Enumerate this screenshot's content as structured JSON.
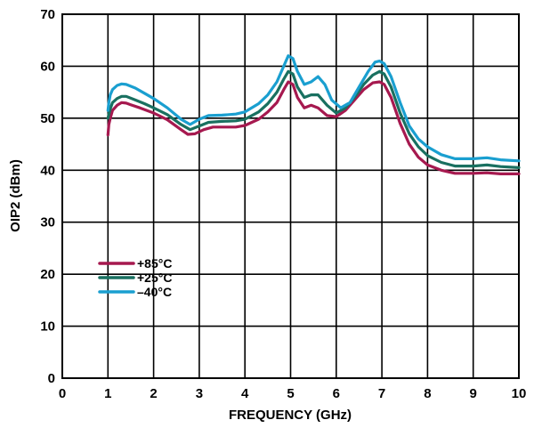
{
  "chart_data": {
    "type": "line",
    "title": "",
    "xlabel": "FREQUENCY (GHz)",
    "ylabel": "OIP2 (dBm)",
    "xlim": [
      0,
      10
    ],
    "ylim": [
      0,
      70
    ],
    "xticks": [
      0,
      1,
      2,
      3,
      4,
      5,
      6,
      7,
      8,
      9,
      10
    ],
    "yticks": [
      0,
      10,
      20,
      30,
      40,
      50,
      60,
      70
    ],
    "grid": true,
    "legend_position": "lower-left",
    "series": [
      {
        "name": "+85°C",
        "color": "#a6194f",
        "x": [
          1.0,
          1.02,
          1.05,
          1.1,
          1.2,
          1.3,
          1.4,
          1.5,
          1.7,
          2.0,
          2.3,
          2.6,
          2.75,
          2.9,
          3.1,
          3.3,
          3.5,
          3.8,
          4.0,
          4.3,
          4.5,
          4.7,
          4.85,
          4.95,
          5.05,
          5.15,
          5.3,
          5.45,
          5.6,
          5.8,
          6.0,
          6.2,
          6.4,
          6.6,
          6.8,
          6.95,
          7.05,
          7.2,
          7.4,
          7.6,
          7.8,
          8.0,
          8.3,
          8.6,
          9.0,
          9.3,
          9.6,
          10.0
        ],
        "y": [
          46.8,
          48.8,
          50.0,
          51.5,
          52.5,
          53.0,
          52.9,
          52.6,
          52.0,
          51.0,
          49.7,
          47.8,
          46.9,
          47.0,
          47.8,
          48.3,
          48.3,
          48.3,
          48.6,
          49.8,
          51.2,
          53.0,
          55.5,
          57.0,
          56.5,
          54.0,
          52.0,
          52.5,
          52.0,
          50.5,
          50.3,
          51.5,
          53.5,
          55.5,
          56.8,
          57.0,
          56.5,
          54.0,
          49.0,
          45.0,
          42.5,
          41.0,
          40.0,
          39.4,
          39.4,
          39.5,
          39.3,
          39.3
        ]
      },
      {
        "name": "+25°C",
        "color": "#197060",
        "x": [
          1.0,
          1.02,
          1.05,
          1.1,
          1.2,
          1.3,
          1.4,
          1.6,
          1.8,
          2.0,
          2.3,
          2.6,
          2.8,
          3.0,
          3.2,
          3.5,
          3.8,
          4.0,
          4.3,
          4.5,
          4.7,
          4.85,
          4.95,
          5.05,
          5.15,
          5.3,
          5.45,
          5.6,
          5.8,
          6.0,
          6.2,
          6.4,
          6.6,
          6.8,
          6.95,
          7.05,
          7.2,
          7.4,
          7.6,
          7.8,
          8.0,
          8.3,
          8.6,
          9.0,
          9.3,
          9.6,
          10.0
        ],
        "y": [
          50.0,
          50.8,
          51.8,
          53.0,
          53.8,
          54.2,
          54.2,
          53.5,
          52.8,
          52.0,
          50.7,
          48.8,
          47.8,
          48.5,
          49.2,
          49.4,
          49.5,
          49.8,
          51.2,
          52.8,
          55.0,
          57.5,
          59.0,
          58.5,
          56.0,
          54.0,
          54.5,
          54.5,
          52.5,
          51.0,
          52.0,
          54.0,
          56.5,
          58.3,
          59.0,
          58.5,
          56.0,
          51.0,
          47.0,
          44.5,
          42.8,
          41.5,
          40.8,
          40.8,
          41.0,
          40.7,
          40.5
        ]
      },
      {
        "name": "–40°C",
        "color": "#1a9fd0",
        "x": [
          1.0,
          1.02,
          1.05,
          1.1,
          1.2,
          1.3,
          1.4,
          1.6,
          1.8,
          2.0,
          2.3,
          2.6,
          2.8,
          3.0,
          3.2,
          3.5,
          3.8,
          4.0,
          4.3,
          4.5,
          4.7,
          4.85,
          4.95,
          5.05,
          5.15,
          5.3,
          5.45,
          5.6,
          5.75,
          5.9,
          6.1,
          6.3,
          6.5,
          6.7,
          6.85,
          6.95,
          7.05,
          7.2,
          7.4,
          7.6,
          7.8,
          8.0,
          8.3,
          8.6,
          9.0,
          9.3,
          9.6,
          10.0
        ],
        "y": [
          51.5,
          53.0,
          54.5,
          55.5,
          56.3,
          56.6,
          56.5,
          55.8,
          54.8,
          53.8,
          52.0,
          49.8,
          48.8,
          49.8,
          50.5,
          50.6,
          50.8,
          51.2,
          52.8,
          54.5,
          57.0,
          60.0,
          62.0,
          61.5,
          59.0,
          56.5,
          57.0,
          58.0,
          56.5,
          53.5,
          52.0,
          53.0,
          56.0,
          59.0,
          60.8,
          61.0,
          60.5,
          58.0,
          53.0,
          48.5,
          46.0,
          44.5,
          43.0,
          42.2,
          42.2,
          42.4,
          42.0,
          41.8
        ]
      }
    ]
  }
}
